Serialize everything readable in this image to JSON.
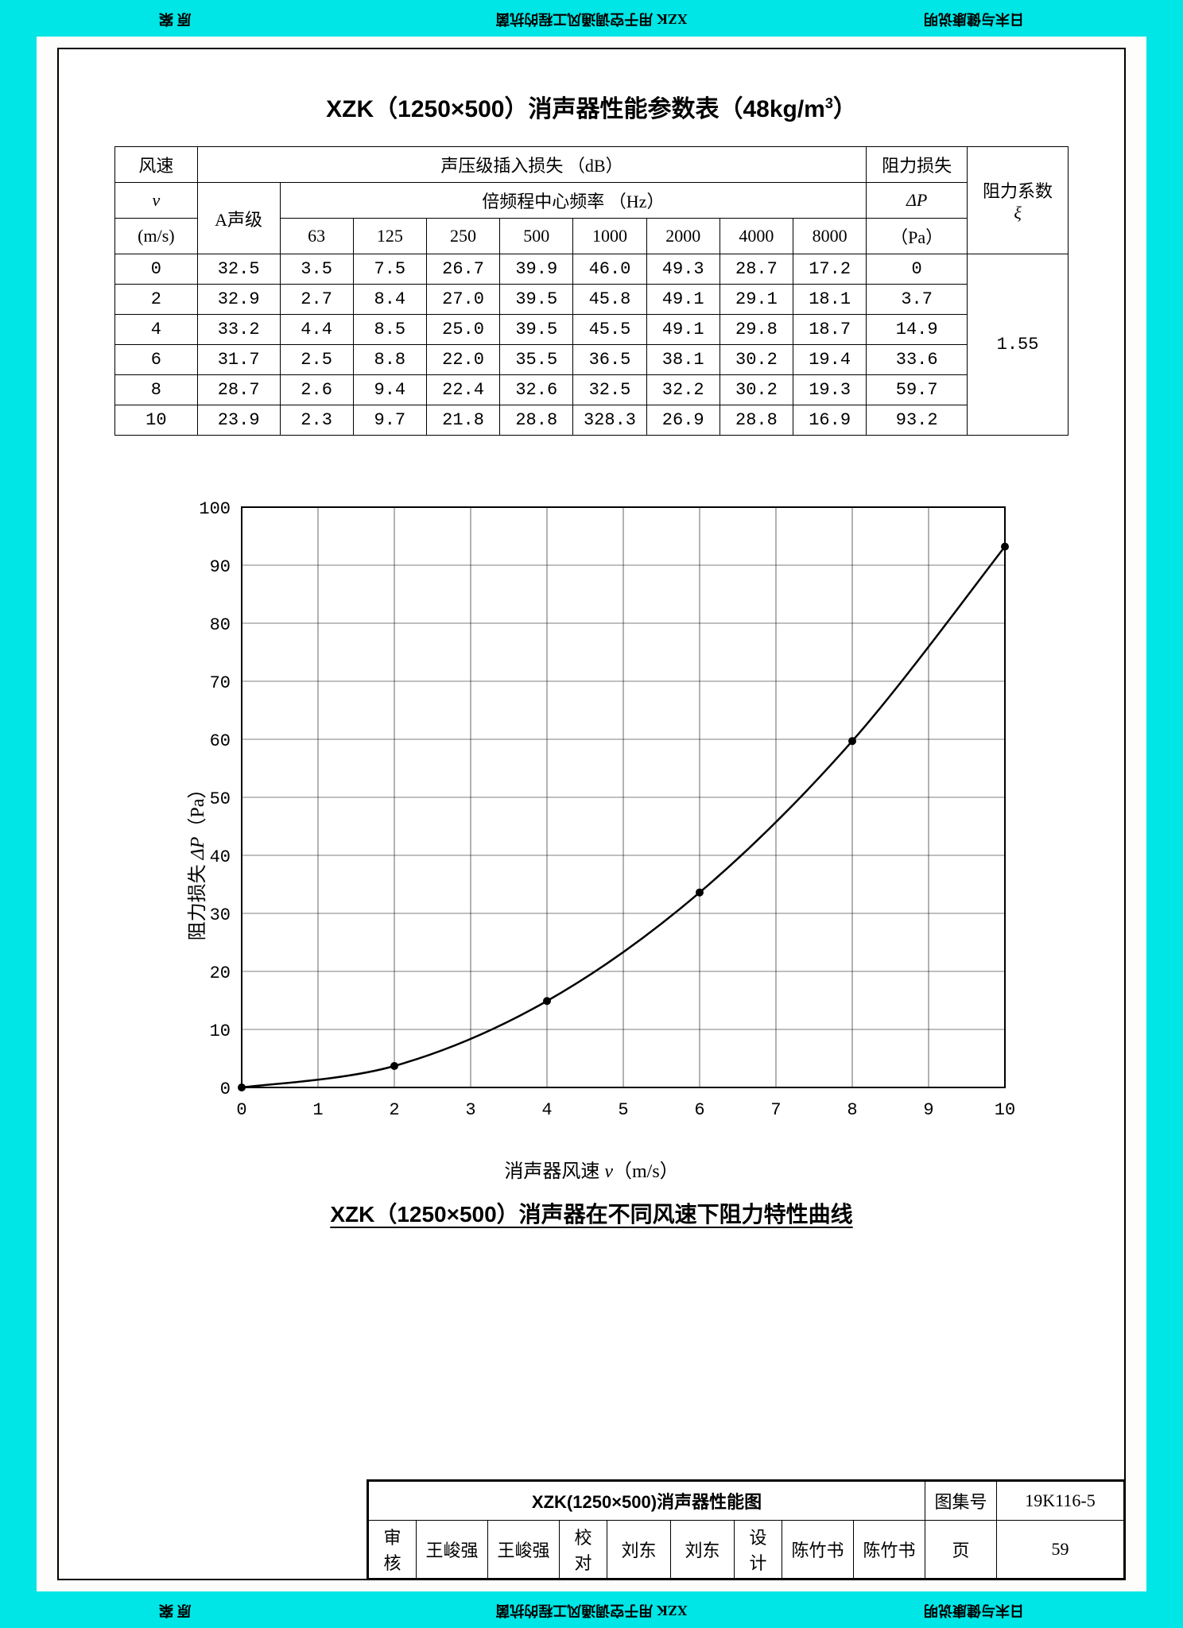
{
  "frame": {
    "top_center": "用于空调通风工程的抗菌",
    "top_brand": "XZK",
    "top_right": "日末与健康说明",
    "top_left": "原 案",
    "bottom_center": "用于空调通风工程的抗菌",
    "bottom_right": "日末与健康说明",
    "bottom_left": "原 案"
  },
  "page_title_prefix": "XZK（1250×500）消声器性能参数表（48kg/m",
  "page_title_suffix": "）",
  "page_title_sup": "3",
  "table": {
    "h_speed1": "风速",
    "h_speed2": "v",
    "h_speed3": "(m/s)",
    "h_db": "声压级插入损失  （dB）",
    "h_hz": "倍频程中心频率  （Hz）",
    "h_a": "A声级",
    "h_dp1": "阻力损失",
    "h_dp2": "ΔP",
    "h_dp3": "（Pa）",
    "h_xi1": "阻力系数",
    "h_xi2": "ξ",
    "freqs": [
      "63",
      "125",
      "250",
      "500",
      "1000",
      "2000",
      "4000",
      "8000"
    ],
    "rows": [
      {
        "v": "0",
        "a": "32.5",
        "f": [
          "3.5",
          "7.5",
          "26.7",
          "39.9",
          "46.0",
          "49.3",
          "28.7",
          "17.2"
        ],
        "dp": "0"
      },
      {
        "v": "2",
        "a": "32.9",
        "f": [
          "2.7",
          "8.4",
          "27.0",
          "39.5",
          "45.8",
          "49.1",
          "29.1",
          "18.1"
        ],
        "dp": "3.7"
      },
      {
        "v": "4",
        "a": "33.2",
        "f": [
          "4.4",
          "8.5",
          "25.0",
          "39.5",
          "45.5",
          "49.1",
          "29.8",
          "18.7"
        ],
        "dp": "14.9"
      },
      {
        "v": "6",
        "a": "31.7",
        "f": [
          "2.5",
          "8.8",
          "22.0",
          "35.5",
          "36.5",
          "38.1",
          "30.2",
          "19.4"
        ],
        "dp": "33.6"
      },
      {
        "v": "8",
        "a": "28.7",
        "f": [
          "2.6",
          "9.4",
          "22.4",
          "32.6",
          "32.5",
          "32.2",
          "30.2",
          "19.3"
        ],
        "dp": "59.7"
      },
      {
        "v": "10",
        "a": "23.9",
        "f": [
          "2.3",
          "9.7",
          "21.8",
          "28.8",
          "328.3",
          "26.9",
          "28.8",
          "16.9"
        ],
        "dp": "93.2"
      }
    ],
    "xi": "1.55"
  },
  "chart": {
    "type": "line",
    "xlim": [
      0,
      10
    ],
    "ylim": [
      0,
      100
    ],
    "xtick_step": 1,
    "ytick_step": 10,
    "xlabel_prefix": "消声器风速  ",
    "xlabel_var": "v",
    "xlabel_unit": "（m/s）",
    "ylabel_prefix": "阻力损失 ",
    "ylabel_var": "ΔP",
    "ylabel_unit": "（Pa）",
    "caption": "XZK（1250×500）消声器在不同风速下阻力特性曲线",
    "points": [
      {
        "x": 0,
        "y": 0
      },
      {
        "x": 2,
        "y": 3.7
      },
      {
        "x": 4,
        "y": 14.9
      },
      {
        "x": 6,
        "y": 33.6
      },
      {
        "x": 8,
        "y": 59.7
      },
      {
        "x": 10,
        "y": 93.2
      }
    ],
    "line_color": "#000000",
    "marker_color": "#000000",
    "grid_color": "#000000",
    "background": "#ffffff",
    "line_width": 2.5,
    "marker_radius": 5,
    "tick_fontsize": 22
  },
  "title_block": {
    "main": "XZK(1250×500)消声器性能图",
    "drawing_no_label": "图集号",
    "drawing_no": "19K116-5",
    "review_label": "审核",
    "review_name": "王峻强",
    "review_sig": "王峻强",
    "check_label": "校对",
    "check_name": "刘东",
    "check_sig": "刘东",
    "design_label": "设计",
    "design_name": "陈竹书",
    "design_sig": "陈竹书",
    "page_label": "页",
    "page_no": "59"
  }
}
